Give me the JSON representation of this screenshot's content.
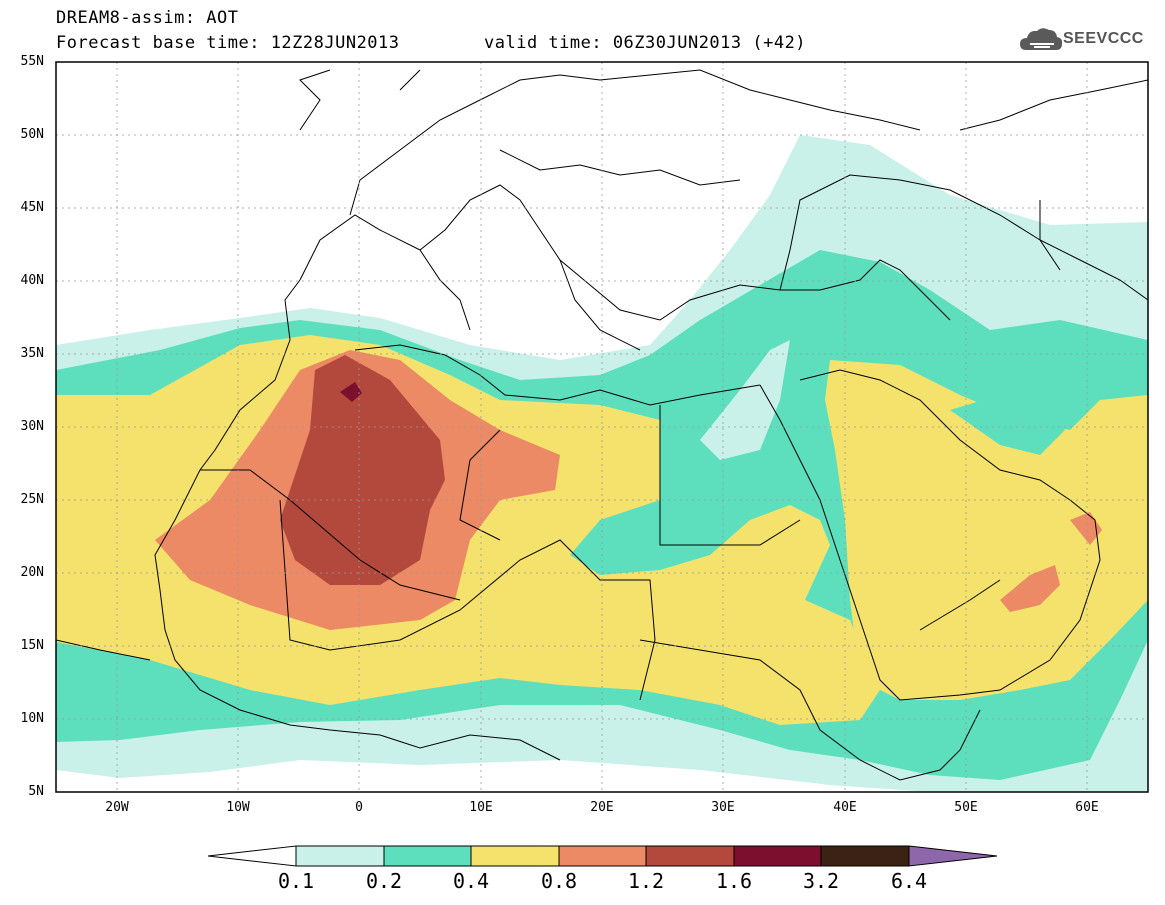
{
  "header": {
    "title": "DREAM8-assim: AOT",
    "base_time": "Forecast base time: 12Z28JUN2013",
    "valid_time": "valid time: 06Z30JUN2013 (+42)",
    "logo_text": "SEEVCCC",
    "logo_icon": "cloud-icon"
  },
  "map": {
    "lat_labels": [
      "55N",
      "50N",
      "45N",
      "40N",
      "35N",
      "30N",
      "25N",
      "20N",
      "15N",
      "10N",
      "5N"
    ],
    "lon_labels": [
      "20W",
      "10W",
      "0",
      "10E",
      "20E",
      "30E",
      "40E",
      "50E",
      "60E"
    ],
    "background": "#ffffff"
  },
  "colorbar": {
    "labels": [
      "0.1",
      "0.2",
      "0.4",
      "0.8",
      "1.2",
      "1.6",
      "3.2",
      "6.4"
    ],
    "colors": [
      "#ffffff",
      "#c9f1ea",
      "#5ddfbd",
      "#f5e26d",
      "#eb8a64",
      "#b2493c",
      "#7c0e2e",
      "#3b2214",
      "#8e67ab"
    ]
  }
}
